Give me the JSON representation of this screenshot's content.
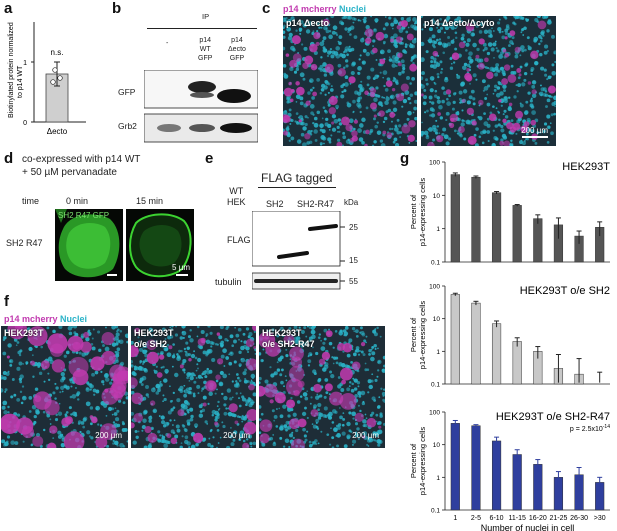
{
  "panels": {
    "a": "a",
    "b": "b",
    "c": "c",
    "d": "d",
    "e": "e",
    "f": "f",
    "g": "g"
  },
  "panel_a": {
    "ylabel_line1": "Biotinylated protein normalized",
    "ylabel_line2": "to p14 WT",
    "annotation": "n.s.",
    "xlabel": "Δecto",
    "yticks": [
      "0",
      "1"
    ]
  },
  "panel_b": {
    "ip": "IP",
    "lane1": "-",
    "lane2_l1": "p14",
    "lane2_l2": "WT",
    "lane2_l3": "GFP",
    "lane3_l1": "p14",
    "lane3_l2": "Δecto",
    "lane3_l3": "GFP",
    "row1": "GFP",
    "row2": "Grb2"
  },
  "panel_c": {
    "title_mcherry": "p14 mcherry",
    "title_nuclei": "Nuclei",
    "label_left": "p14 Δecto",
    "label_right": "p14 Δecto/Δcyto",
    "scale": "200 µm"
  },
  "panel_d": {
    "title_l1": "co-expressed with p14 WT",
    "title_l2": "+ 50 µM pervanadate",
    "time": "time",
    "t0": "0 min",
    "t15": "15 min",
    "row": "SH2 R47",
    "inner_label": "SH2 R47 GFP",
    "scale": "5 µm"
  },
  "panel_e": {
    "flag_tagged": "FLAG tagged",
    "col1_l1": "WT",
    "col1_l2": "HEK",
    "col2": "SH2",
    "col3": "SH2-R47",
    "kda": "kDa",
    "row1": "FLAG",
    "row2": "tubulin",
    "mw": [
      "25",
      "15",
      "55"
    ]
  },
  "panel_f": {
    "title_mcherry": "p14 mcherry",
    "title_nuclei": "Nuclei",
    "img1_l1": "HEK293T",
    "img2_l1": "HEK293T",
    "img2_l2": "o/e SH2",
    "img3_l1": "HEK293T",
    "img3_l2": "o/e SH2-R47",
    "scale": "200 µm"
  },
  "colors": {
    "mcherry": "#c23bb0",
    "nuclei": "#2ab3c8",
    "bar_dark": "#555555",
    "bar_light": "#c8c8c8",
    "bar_blue": "#2f3f9e"
  },
  "chart_data": [
    {
      "type": "bar",
      "title": "",
      "categories": [
        "Δecto"
      ],
      "values": [
        0.8
      ],
      "error": [
        0.2
      ],
      "xlabel": "Δecto",
      "ylabel": "Biotinylated protein normalized to p14 WT",
      "ylim": [
        0,
        1.5
      ],
      "annotation": "n.s."
    },
    {
      "type": "bar",
      "title": "HEK293T",
      "categories": [
        "1",
        "2-5",
        "6-10",
        "11-15",
        "16-20",
        "21-25",
        "26-30",
        ">30"
      ],
      "values": [
        42,
        35,
        12,
        5,
        2,
        1.3,
        0.6,
        1.1
      ],
      "error_up": [
        5,
        3,
        1,
        0.3,
        0.6,
        0.8,
        0.25,
        0.5
      ],
      "ylabel": "Percent of p14-expressing cells",
      "yscale": "log",
      "ylim": [
        0.1,
        100
      ],
      "yticks": [
        "0.1",
        "1",
        "10",
        "100"
      ]
    },
    {
      "type": "bar",
      "title": "HEK293T o/e SH2",
      "categories": [
        "1",
        "2-5",
        "6-10",
        "11-15",
        "16-20",
        "21-25",
        "26-30",
        ">30"
      ],
      "values": [
        55,
        30,
        7,
        2,
        1,
        0.3,
        0.2,
        0.08
      ],
      "error_up": [
        5,
        4,
        1.5,
        0.6,
        0.4,
        0.5,
        0.4,
        0.15
      ],
      "ylabel": "Percent of p14-expressing cells",
      "yscale": "log",
      "ylim": [
        0.1,
        100
      ],
      "yticks": [
        "0.1",
        "1",
        "10",
        "100"
      ]
    },
    {
      "type": "bar",
      "title": "HEK293T o/e SH2-R47",
      "annotation": "p = 2.5x10-14",
      "categories": [
        "1",
        "2-5",
        "6-10",
        "11-15",
        "16-20",
        "21-25",
        "26-30",
        ">30"
      ],
      "values": [
        45,
        38,
        13,
        5,
        2.5,
        1,
        1.2,
        0.7
      ],
      "error_up": [
        10,
        3,
        4,
        2,
        1,
        0.5,
        0.8,
        0.3
      ],
      "xlabel": "Number of nuclei in cell",
      "ylabel": "Percent of p14-expressing cells",
      "yscale": "log",
      "ylim": [
        0.1,
        100
      ],
      "yticks": [
        "0.1",
        "1",
        "10",
        "100"
      ]
    }
  ]
}
